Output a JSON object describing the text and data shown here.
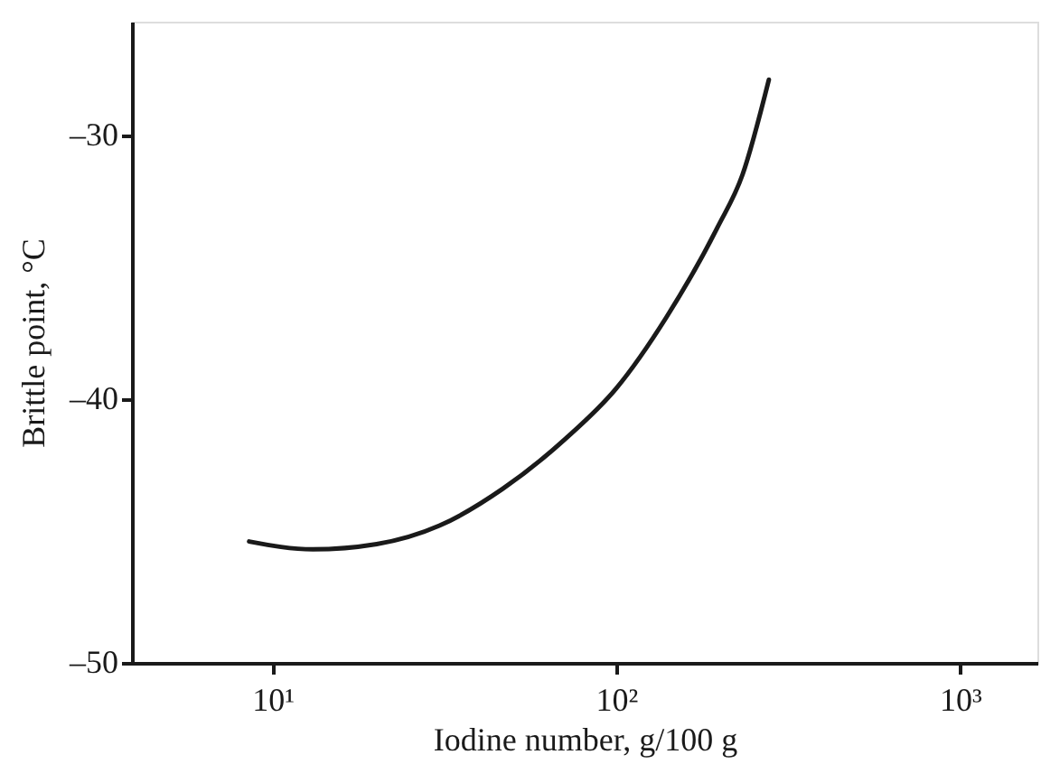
{
  "chart_data": {
    "type": "line",
    "xlabel": "Iodine number, g/100 g",
    "ylabel": "Brittle point, °C",
    "x": [
      8.55,
      13.1,
      20.1,
      30.6,
      46.8,
      71.3,
      100,
      140,
      197,
      233,
      278
    ],
    "series": [
      {
        "color": "#1a1a1a",
        "values": [
          -45.4,
          -45.7,
          -45.5,
          -44.8,
          -43.4,
          -41.5,
          -39.6,
          -36.9,
          -33.5,
          -31.5,
          -27.9
        ]
      }
    ],
    "log": "x",
    "xlim": [
      3.9,
      1680
    ],
    "xticks": [
      {
        "value": 10,
        "label": "10¹"
      },
      {
        "value": 100,
        "label": "10²"
      },
      {
        "value": 1000,
        "label": "10³"
      }
    ],
    "ylim": [
      -50,
      -25.7
    ],
    "yticks": [
      {
        "value": -50,
        "label": "–50"
      },
      {
        "value": -40,
        "label": "–40"
      },
      {
        "value": -30,
        "label": "–30"
      }
    ],
    "grid": false,
    "marker": "none",
    "line_style": "solid"
  }
}
